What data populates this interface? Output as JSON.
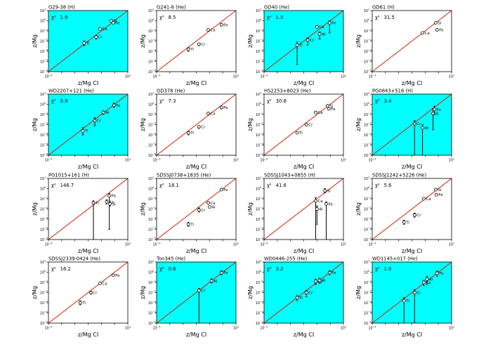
{
  "figure": {
    "xlabel": "z/Mg CI",
    "ylabel": "z/Mg",
    "colors": {
      "highlight": "#00ffff",
      "line": "#cc2200",
      "frame": "#000000",
      "plain_bg": "#ffffff"
    },
    "chi_prefix": "χ²"
  },
  "chart_data": [
    {
      "type": "scatter",
      "title": "G29-38 (H)",
      "chi2": "1.9",
      "highlight": true,
      "xlim": [
        -5,
        1
      ],
      "ylim": [
        -5,
        1
      ],
      "xscale": "log",
      "yscale": "log",
      "diagonal": true,
      "points": [
        {
          "el": "Ti",
          "x": -2.3,
          "y": -2.2,
          "err_down": 0.25,
          "err_up": 0.2
        },
        {
          "el": "Cr",
          "x": -1.4,
          "y": -1.6,
          "err_down": 0.2,
          "err_up": 0.15
        },
        {
          "el": "Ca",
          "x": -1.1,
          "y": -0.8,
          "err_down": 0.1,
          "err_up": 0.1
        },
        {
          "el": "Si",
          "x": -0.25,
          "y": 0.0,
          "err_down": 0.1,
          "err_up": 0.1
        },
        {
          "el": "Fe",
          "x": -0.1,
          "y": -0.2,
          "err_down": 0.1,
          "err_up": 0.1
        }
      ]
    },
    {
      "type": "scatter",
      "title": "G241-6 (He)",
      "chi2": "8.5",
      "highlight": false,
      "xlim": [
        -5,
        1
      ],
      "ylim": [
        -5,
        1
      ],
      "xscale": "log",
      "yscale": "log",
      "diagonal": true,
      "points": [
        {
          "el": "Ti",
          "x": -2.6,
          "y": -2.8,
          "err_down": 0.2,
          "err_up": 0.15
        },
        {
          "el": "Cr",
          "x": -1.8,
          "y": -2.3,
          "err_down": 0.15,
          "err_up": 0.1
        },
        {
          "el": "Ca",
          "x": -1.1,
          "y": -0.9,
          "err_down": 0.1,
          "err_up": 0.1
        },
        {
          "el": "Fe",
          "x": -0.1,
          "y": -0.4,
          "err_down": 0.1,
          "err_up": 0.1
        }
      ]
    },
    {
      "type": "scatter",
      "title": "GD40 (He)",
      "chi2": "1.5",
      "highlight": true,
      "xlim": [
        -5,
        1
      ],
      "ylim": [
        -5,
        1
      ],
      "xscale": "log",
      "yscale": "log",
      "diagonal": true,
      "points": [
        {
          "el": "Ti",
          "x": -2.5,
          "y": -2.4,
          "err_down": 1.9,
          "err_up": 0.3
        },
        {
          "el": "Cr",
          "x": -1.7,
          "y": -1.9,
          "err_down": 0.5,
          "err_up": 0.2
        },
        {
          "el": "Ca",
          "x": -1.0,
          "y": -0.6,
          "err_down": 0.1,
          "err_up": 0.1
        },
        {
          "el": "Al",
          "x": -0.8,
          "y": -1.3,
          "err_down": 0.5,
          "err_up": 0.2
        },
        {
          "el": "Fe",
          "x": -0.05,
          "y": -0.2,
          "err_down": 1.0,
          "err_up": 0.2
        }
      ]
    },
    {
      "type": "scatter",
      "title": "GD61 (H)",
      "chi2": "31.5",
      "highlight": false,
      "xlim": [
        -5,
        1
      ],
      "ylim": [
        -5,
        1
      ],
      "xscale": "log",
      "yscale": "log",
      "diagonal": true,
      "points": [
        {
          "el": "Ca",
          "x": -1.2,
          "y": -1.2,
          "err_down": 0.1,
          "err_up": 0.1
        },
        {
          "el": "Si",
          "x": -0.2,
          "y": -0.2,
          "err_down": 0.1,
          "err_up": 0.1
        },
        {
          "el": "Fe",
          "x": -0.1,
          "y": -0.9,
          "err_down": 0.1,
          "err_up": 0.1
        }
      ]
    },
    {
      "type": "scatter",
      "title": "WD2207+121 (He)",
      "chi2": "0.9",
      "highlight": true,
      "xlim": [
        -5,
        1
      ],
      "ylim": [
        -5,
        1
      ],
      "xscale": "log",
      "yscale": "log",
      "diagonal": true,
      "points": [
        {
          "el": "Ti",
          "x": -2.4,
          "y": -2.6,
          "err_down": 0.4,
          "err_up": 0.3
        },
        {
          "el": "Cr",
          "x": -1.5,
          "y": -1.6,
          "err_down": 0.5,
          "err_up": 0.3
        },
        {
          "el": "Al",
          "x": -0.85,
          "y": -0.8,
          "err_down": 0.2,
          "err_up": 0.15
        },
        {
          "el": "Fe",
          "x": -0.05,
          "y": -0.1,
          "err_down": 0.2,
          "err_up": 0.2
        }
      ]
    },
    {
      "type": "scatter",
      "title": "GD378 (He)",
      "chi2": "7.3",
      "highlight": false,
      "xlim": [
        -5,
        1
      ],
      "ylim": [
        -5,
        1
      ],
      "xscale": "log",
      "yscale": "log",
      "diagonal": true,
      "points": [
        {
          "el": "Ti",
          "x": -2.6,
          "y": -2.8,
          "err_down": 0.2,
          "err_up": 0.15
        },
        {
          "el": "Cr",
          "x": -1.8,
          "y": -2.2,
          "err_down": 0.15,
          "err_up": 0.1
        },
        {
          "el": "Ca",
          "x": -1.1,
          "y": -0.9,
          "err_down": 0.1,
          "err_up": 0.1
        },
        {
          "el": "Fe",
          "x": -0.1,
          "y": -0.3,
          "err_down": 0.15,
          "err_up": 0.1
        }
      ]
    },
    {
      "type": "scatter",
      "title": "HS2253+8023 (He)",
      "chi2": "30.8",
      "highlight": false,
      "xlim": [
        -5,
        1
      ],
      "ylim": [
        -5,
        1
      ],
      "xscale": "log",
      "yscale": "log",
      "diagonal": true,
      "points": [
        {
          "el": "Ti",
          "x": -2.5,
          "y": -2.8,
          "err_down": 0.1,
          "err_up": 0.1
        },
        {
          "el": "Cr",
          "x": -1.8,
          "y": -2.0,
          "err_down": 0.1,
          "err_up": 0.1
        },
        {
          "el": "Ca",
          "x": -1.1,
          "y": -0.8,
          "err_down": 0.1,
          "err_up": 0.1
        },
        {
          "el": "Si",
          "x": -0.2,
          "y": -0.15,
          "err_down": 0.1,
          "err_up": 0.1
        },
        {
          "el": "Fe",
          "x": -0.1,
          "y": -0.45,
          "err_down": 0.1,
          "err_up": 0.1
        }
      ]
    },
    {
      "type": "scatter",
      "title": "PG0843+516 (H)",
      "chi2": "3.4",
      "highlight": true,
      "xlim": [
        -5,
        1
      ],
      "ylim": [
        -5,
        1
      ],
      "xscale": "log",
      "yscale": "log",
      "diagonal": true,
      "points": [
        {
          "el": "Cr",
          "x": -1.8,
          "y": -1.9,
          "err_down": 3.1,
          "err_up": 0.3
        },
        {
          "el": "Al",
          "x": -1.2,
          "y": -2.3,
          "err_down": 2.7,
          "err_up": 0.3
        },
        {
          "el": "Si",
          "x": -0.4,
          "y": -0.9,
          "err_down": 1.6,
          "err_up": 0.5
        },
        {
          "el": "Fe",
          "x": -0.3,
          "y": -0.5,
          "err_down": 0.5,
          "err_up": 0.3
        }
      ]
    },
    {
      "type": "scatter",
      "title": "PG1015+161 (H)",
      "chi2": "146.7",
      "highlight": false,
      "xlim": [
        -5,
        1
      ],
      "ylim": [
        -5,
        1
      ],
      "xscale": "log",
      "yscale": "log",
      "diagonal": true,
      "points": [
        {
          "el": "Ti",
          "x": -1.6,
          "y": -1.4,
          "err_down": 3.6,
          "err_up": 0.2
        },
        {
          "el": "Ca",
          "x": -0.6,
          "y": -1.3,
          "err_down": 0.2,
          "err_up": 0.2
        },
        {
          "el": "Fe",
          "x": -0.4,
          "y": -0.7,
          "err_down": 3.3,
          "err_up": 0.2
        },
        {
          "el": "Si",
          "x": -0.35,
          "y": -1.5,
          "err_down": 0.2,
          "err_up": 0.2
        }
      ]
    },
    {
      "type": "scatter",
      "title": "SDSSJ0738+1835 (He)",
      "chi2": "18.1",
      "highlight": false,
      "xlim": [
        -5,
        1
      ],
      "ylim": [
        -5,
        1
      ],
      "xscale": "log",
      "yscale": "log",
      "diagonal": true,
      "points": [
        {
          "el": "Ti",
          "x": -2.6,
          "y": -3.5,
          "err_down": 0.2,
          "err_up": 0.2
        },
        {
          "el": "Cr",
          "x": -1.8,
          "y": -2.1,
          "err_down": 0.2,
          "err_up": 0.2
        },
        {
          "el": "Ca",
          "x": -1.1,
          "y": -1.4,
          "err_down": 0.1,
          "err_up": 0.1
        },
        {
          "el": "Al",
          "x": -1.0,
          "y": -1.8,
          "err_down": 0.1,
          "err_up": 0.1
        },
        {
          "el": "Fe",
          "x": -0.1,
          "y": -0.1,
          "err_down": 0.1,
          "err_up": 0.1
        }
      ]
    },
    {
      "type": "scatter",
      "title": "SDSSJ1043+0855 (H)",
      "chi2": "41.6",
      "highlight": false,
      "xlim": [
        -5,
        1
      ],
      "ylim": [
        -5,
        1
      ],
      "xscale": "log",
      "yscale": "log",
      "diagonal": true,
      "points": [
        {
          "el": "Ca",
          "x": -1.1,
          "y": -1.2,
          "err_down": 3.8,
          "err_up": 0.3
        },
        {
          "el": "Al",
          "x": -1.0,
          "y": -2.0,
          "err_down": 1.5,
          "err_up": 0.3
        },
        {
          "el": "Si",
          "x": -0.4,
          "y": -0.2,
          "err_down": 0.2,
          "err_up": 0.2
        },
        {
          "el": "Fe",
          "x": -0.3,
          "y": -1.5,
          "err_down": 3.5,
          "err_up": 0.2
        }
      ]
    },
    {
      "type": "scatter",
      "title": "SDSSJ1242+5226 (He)",
      "chi2": "5.6",
      "highlight": false,
      "xlim": [
        -5,
        1
      ],
      "ylim": [
        -5,
        1
      ],
      "xscale": "log",
      "yscale": "log",
      "diagonal": true,
      "points": [
        {
          "el": "Ti",
          "x": -2.6,
          "y": -3.3,
          "err_down": 0.2,
          "err_up": 0.2
        },
        {
          "el": "Cr",
          "x": -1.8,
          "y": -2.6,
          "err_down": 0.2,
          "err_up": 0.2
        },
        {
          "el": "Ca",
          "x": -1.1,
          "y": -1.0,
          "err_down": 0.1,
          "err_up": 0.1
        },
        {
          "el": "Si",
          "x": -0.2,
          "y": -0.1,
          "err_down": 0.1,
          "err_up": 0.1
        },
        {
          "el": "Fe",
          "x": -0.15,
          "y": -0.6,
          "err_down": 0.1,
          "err_up": 0.1
        }
      ]
    },
    {
      "type": "scatter",
      "title": "SDSSJ2339-0424 (He)",
      "chi2": "16.2",
      "highlight": false,
      "xlim": [
        -5,
        1
      ],
      "ylim": [
        -5,
        1
      ],
      "xscale": "log",
      "yscale": "log",
      "diagonal": true,
      "points": [
        {
          "el": "Ti",
          "x": -2.6,
          "y": -3.0,
          "err_down": 0.2,
          "err_up": 0.2
        },
        {
          "el": "Cr",
          "x": -1.8,
          "y": -2.0,
          "err_down": 0.15,
          "err_up": 0.15
        },
        {
          "el": "Ca",
          "x": -1.1,
          "y": -1.1,
          "err_down": 0.1,
          "err_up": 0.1
        },
        {
          "el": "Fe",
          "x": -0.1,
          "y": -0.3,
          "err_down": 0.1,
          "err_up": 0.1
        }
      ]
    },
    {
      "type": "scatter",
      "title": "Ton345 (He)",
      "chi2": "0.6",
      "highlight": true,
      "xlim": [
        -5,
        1
      ],
      "ylim": [
        -5,
        1
      ],
      "xscale": "log",
      "yscale": "log",
      "diagonal": true,
      "points": [
        {
          "el": "Cr",
          "x": -1.8,
          "y": -1.8,
          "err_down": 3.2,
          "err_up": 0.2
        },
        {
          "el": "Al",
          "x": -0.85,
          "y": -0.85,
          "err_down": 0.2,
          "err_up": 0.2
        },
        {
          "el": "Fe",
          "x": -0.1,
          "y": -0.05,
          "err_down": 0.2,
          "err_up": 0.2
        }
      ]
    },
    {
      "type": "scatter",
      "title": "WD0446-255 (He)",
      "chi2": "3.2",
      "highlight": true,
      "xlim": [
        -5,
        1
      ],
      "ylim": [
        -5,
        1
      ],
      "xscale": "log",
      "yscale": "log",
      "diagonal": true,
      "points": [
        {
          "el": "Ti",
          "x": -2.5,
          "y": -2.5,
          "err_down": 0.3,
          "err_up": 0.2
        },
        {
          "el": "Cr",
          "x": -1.8,
          "y": -2.0,
          "err_down": 0.4,
          "err_up": 0.2
        },
        {
          "el": "Ca",
          "x": -1.1,
          "y": -0.9,
          "err_down": 0.3,
          "err_up": 0.2
        },
        {
          "el": "Al",
          "x": -0.8,
          "y": -0.8,
          "err_down": 0.3,
          "err_up": 0.2
        },
        {
          "el": "Fe",
          "x": -0.05,
          "y": -0.05,
          "err_down": 0.2,
          "err_up": 0.2
        }
      ]
    },
    {
      "type": "scatter",
      "title": "WD1145+017 (He)",
      "chi2": "1.0",
      "highlight": true,
      "xlim": [
        -5,
        1
      ],
      "ylim": [
        -5,
        1
      ],
      "xscale": "log",
      "yscale": "log",
      "diagonal": true,
      "points": [
        {
          "el": "Ti",
          "x": -2.6,
          "y": -2.8,
          "err_down": 2.2,
          "err_up": 0.3
        },
        {
          "el": "Cr",
          "x": -1.8,
          "y": -2.0,
          "err_down": 3.0,
          "err_up": 0.3
        },
        {
          "el": "Ca",
          "x": -1.1,
          "y": -1.0,
          "err_down": 0.3,
          "err_up": 0.2
        },
        {
          "el": "Al",
          "x": -0.85,
          "y": -0.7,
          "err_down": 0.5,
          "err_up": 0.3
        },
        {
          "el": "Fe",
          "x": -0.1,
          "y": -0.1,
          "err_down": 0.3,
          "err_up": 0.2
        }
      ]
    }
  ]
}
